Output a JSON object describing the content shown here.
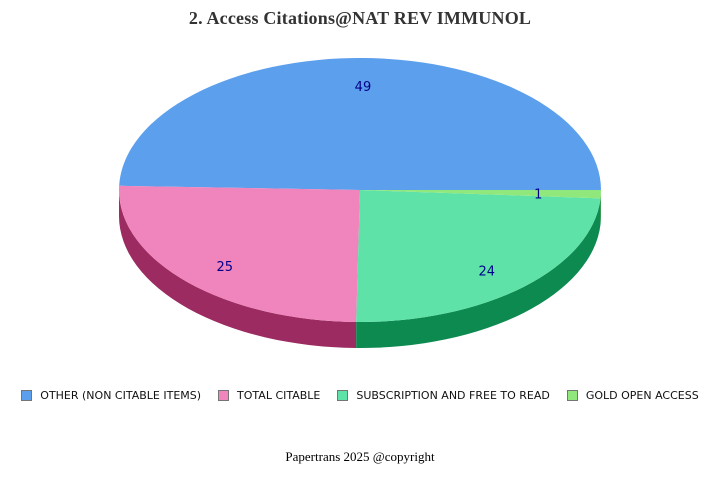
{
  "title": "2. Access Citations@NAT REV IMMUNOL",
  "footer": "Papertrans 2025 @copyright",
  "chart_data": {
    "type": "pie",
    "title": "2. Access Citations@NAT REV IMMUNOL",
    "effect": "3d",
    "start_angle_deg": 0,
    "direction": "counterclockwise",
    "total": 99,
    "legend_position": "bottom",
    "value_label_color": "#00008B",
    "background_color": "#FFFFFF",
    "series": [
      {
        "label": "OTHER (NON CITABLE ITEMS)",
        "value": 49,
        "color": "#5C9FEC",
        "side_color": null
      },
      {
        "label": "TOTAL CITABLE",
        "value": 25,
        "color": "#F084BC",
        "side_color": "#9B2B60"
      },
      {
        "label": "SUBSCRIPTION AND FREE TO READ",
        "value": 24,
        "color": "#5FE2A7",
        "side_color": "#0D8A50"
      },
      {
        "label": "GOLD OPEN ACCESS",
        "value": 1,
        "color": "#90E87D",
        "side_color": "#63A856"
      }
    ]
  }
}
